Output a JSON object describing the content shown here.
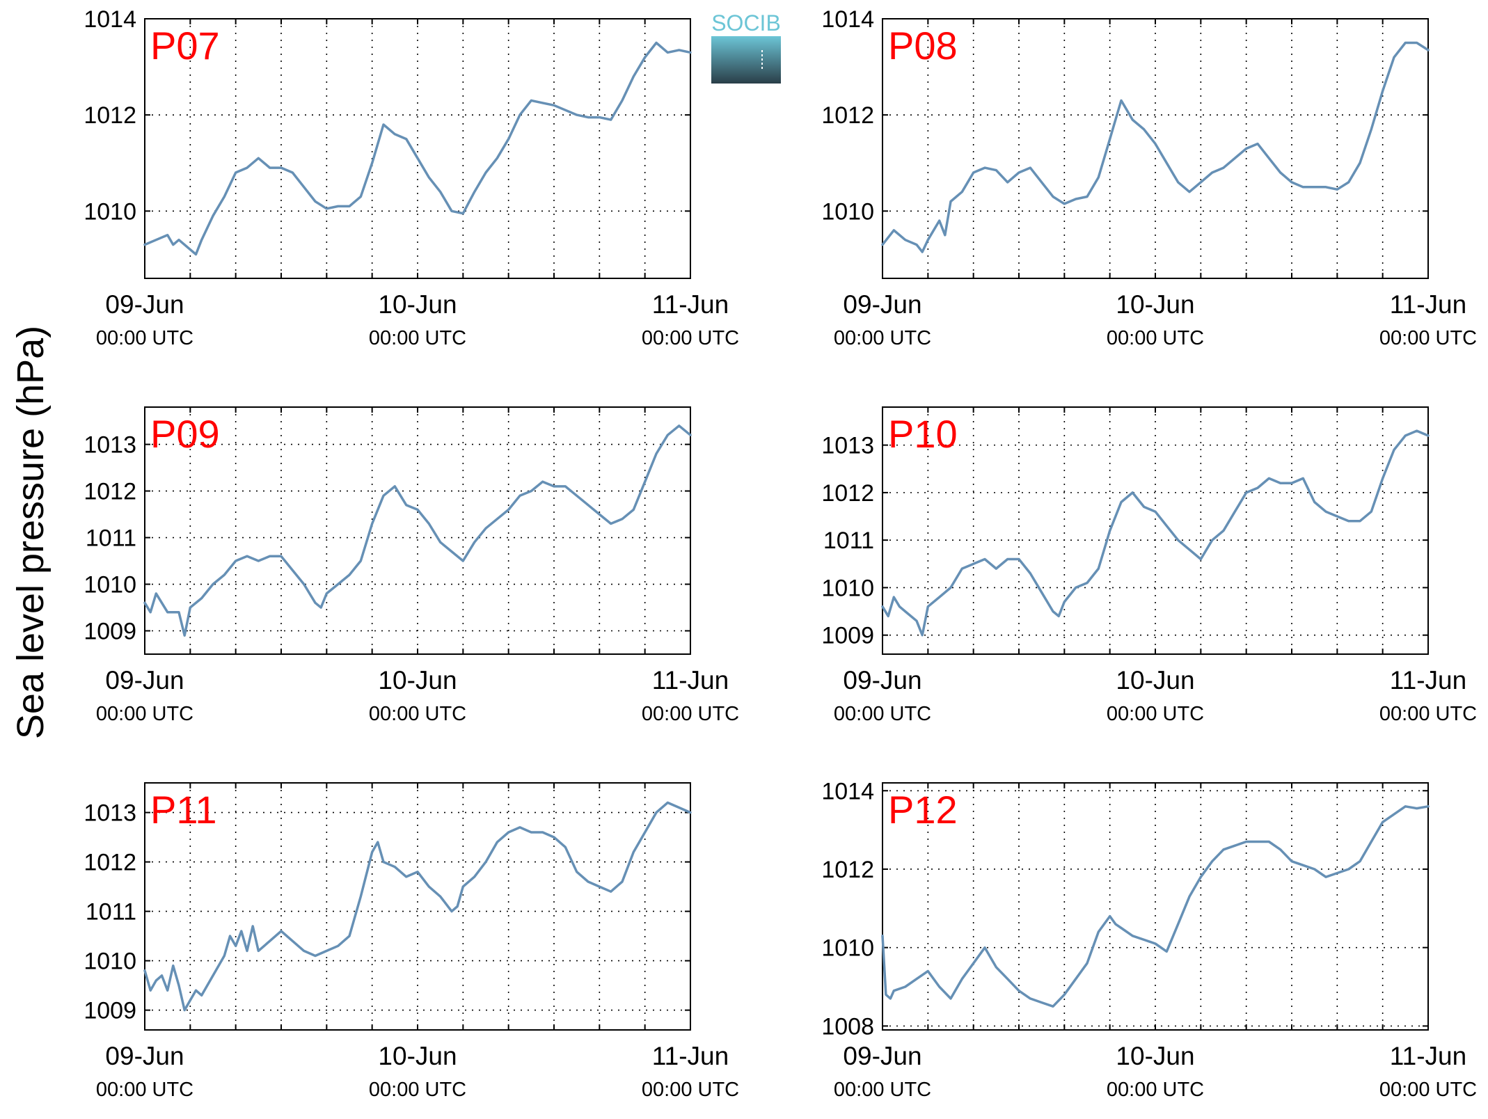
{
  "figure": {
    "ylabel": "Sea level pressure (hPa)",
    "logo_text": "SOCIB",
    "colors": {
      "line": "#6690b5",
      "panel_label": "#ff0000",
      "axis": "#000000",
      "grid": "#000000",
      "logo_top": "#6cc5d6",
      "logo_bottom": "#2a3e48"
    }
  },
  "chart_data": [
    {
      "type": "line",
      "label": "P07",
      "x_unit": "hours since 09-Jun 00:00 UTC",
      "xlim": [
        0,
        48
      ],
      "xticks": [
        0,
        24,
        48
      ],
      "xtick_labels": [
        [
          "09-Jun",
          "00:00 UTC"
        ],
        [
          "10-Jun",
          "00:00 UTC"
        ],
        [
          "11-Jun",
          "00:00 UTC"
        ]
      ],
      "ylim": [
        1008.6,
        1014.0
      ],
      "yticks": [
        1010,
        1012,
        1014
      ],
      "grid": true,
      "x": [
        0,
        1,
        2,
        2.5,
        3,
        4,
        4.5,
        5,
        6,
        7,
        8,
        9,
        10,
        11,
        12,
        13,
        14,
        15,
        16,
        17,
        18,
        19,
        20,
        21,
        22,
        23,
        24,
        25,
        26,
        27,
        28,
        29,
        30,
        31,
        32,
        33,
        34,
        35,
        36,
        37,
        38,
        39,
        40,
        41,
        42,
        43,
        44,
        45,
        46,
        47,
        48
      ],
      "y": [
        1009.3,
        1009.4,
        1009.5,
        1009.3,
        1009.4,
        1009.2,
        1009.1,
        1009.4,
        1009.9,
        1010.3,
        1010.8,
        1010.9,
        1011.1,
        1010.9,
        1010.9,
        1010.8,
        1010.5,
        1010.2,
        1010.05,
        1010.1,
        1010.1,
        1010.3,
        1011.0,
        1011.8,
        1011.6,
        1011.5,
        1011.1,
        1010.7,
        1010.4,
        1010.0,
        1009.95,
        1010.4,
        1010.8,
        1011.1,
        1011.5,
        1012.0,
        1012.3,
        1012.25,
        1012.2,
        1012.1,
        1012.0,
        1011.95,
        1011.95,
        1011.9,
        1012.3,
        1012.8,
        1013.2,
        1013.5,
        1013.3,
        1013.35,
        1013.3
      ]
    },
    {
      "type": "line",
      "label": "P08",
      "x_unit": "hours since 09-Jun 00:00 UTC",
      "xlim": [
        0,
        48
      ],
      "xticks": [
        0,
        24,
        48
      ],
      "xtick_labels": [
        [
          "09-Jun",
          "00:00 UTC"
        ],
        [
          "10-Jun",
          "00:00 UTC"
        ],
        [
          "11-Jun",
          "00:00 UTC"
        ]
      ],
      "ylim": [
        1008.6,
        1014.0
      ],
      "yticks": [
        1010,
        1012,
        1014
      ],
      "grid": true,
      "x": [
        0,
        1,
        2,
        3,
        3.5,
        4,
        5,
        5.5,
        6,
        7,
        8,
        9,
        10,
        11,
        12,
        13,
        14,
        15,
        16,
        17,
        18,
        19,
        20,
        20.5,
        21,
        22,
        23,
        24,
        25,
        26,
        27,
        28,
        29,
        30,
        31,
        32,
        33,
        34,
        35,
        36,
        37,
        38,
        39,
        40,
        41,
        42,
        43,
        44,
        45,
        46,
        47,
        48
      ],
      "y": [
        1009.3,
        1009.6,
        1009.4,
        1009.3,
        1009.15,
        1009.4,
        1009.8,
        1009.5,
        1010.2,
        1010.4,
        1010.8,
        1010.9,
        1010.85,
        1010.6,
        1010.8,
        1010.9,
        1010.6,
        1010.3,
        1010.15,
        1010.25,
        1010.3,
        1010.7,
        1011.5,
        1011.9,
        1012.3,
        1011.9,
        1011.7,
        1011.4,
        1011.0,
        1010.6,
        1010.4,
        1010.6,
        1010.8,
        1010.9,
        1011.1,
        1011.3,
        1011.4,
        1011.1,
        1010.8,
        1010.6,
        1010.5,
        1010.5,
        1010.5,
        1010.45,
        1010.6,
        1011.0,
        1011.7,
        1012.5,
        1013.2,
        1013.5,
        1013.5,
        1013.35
      ]
    },
    {
      "type": "line",
      "label": "P09",
      "x_unit": "hours since 09-Jun 00:00 UTC",
      "xlim": [
        0,
        48
      ],
      "xticks": [
        0,
        24,
        48
      ],
      "xtick_labels": [
        [
          "09-Jun",
          "00:00 UTC"
        ],
        [
          "10-Jun",
          "00:00 UTC"
        ],
        [
          "11-Jun",
          "00:00 UTC"
        ]
      ],
      "ylim": [
        1008.5,
        1013.8
      ],
      "yticks": [
        1009,
        1010,
        1011,
        1012,
        1013
      ],
      "grid": true,
      "x": [
        0,
        0.5,
        1,
        1.5,
        2,
        3,
        3.5,
        4,
        5,
        6,
        7,
        8,
        9,
        10,
        11,
        12,
        13,
        14,
        15,
        15.5,
        16,
        17,
        18,
        19,
        20,
        21,
        22,
        23,
        24,
        25,
        26,
        27,
        28,
        29,
        30,
        31,
        32,
        33,
        34,
        35,
        36,
        37,
        38,
        39,
        40,
        41,
        42,
        43,
        44,
        45,
        46,
        47,
        48
      ],
      "y": [
        1009.6,
        1009.4,
        1009.8,
        1009.6,
        1009.4,
        1009.4,
        1008.9,
        1009.5,
        1009.7,
        1010.0,
        1010.2,
        1010.5,
        1010.6,
        1010.5,
        1010.6,
        1010.6,
        1010.3,
        1010.0,
        1009.6,
        1009.5,
        1009.8,
        1010.0,
        1010.2,
        1010.5,
        1011.3,
        1011.9,
        1012.1,
        1011.7,
        1011.6,
        1011.3,
        1010.9,
        1010.7,
        1010.5,
        1010.9,
        1011.2,
        1011.4,
        1011.6,
        1011.9,
        1012.0,
        1012.2,
        1012.1,
        1012.1,
        1011.9,
        1011.7,
        1011.5,
        1011.3,
        1011.4,
        1011.6,
        1012.2,
        1012.8,
        1013.2,
        1013.4,
        1013.2
      ]
    },
    {
      "type": "line",
      "label": "P10",
      "x_unit": "hours since 09-Jun 00:00 UTC",
      "xlim": [
        0,
        48
      ],
      "xticks": [
        0,
        24,
        48
      ],
      "xtick_labels": [
        [
          "09-Jun",
          "00:00 UTC"
        ],
        [
          "10-Jun",
          "00:00 UTC"
        ],
        [
          "11-Jun",
          "00:00 UTC"
        ]
      ],
      "ylim": [
        1008.6,
        1013.8
      ],
      "yticks": [
        1009,
        1010,
        1011,
        1012,
        1013
      ],
      "grid": true,
      "x": [
        0,
        0.5,
        1,
        1.5,
        2,
        3,
        3.5,
        4,
        5,
        6,
        7,
        8,
        9,
        10,
        11,
        12,
        13,
        14,
        15,
        15.5,
        16,
        17,
        18,
        19,
        20,
        21,
        22,
        23,
        24,
        25,
        26,
        27,
        28,
        29,
        30,
        31,
        32,
        33,
        34,
        35,
        36,
        37,
        38,
        39,
        40,
        41,
        42,
        43,
        44,
        45,
        46,
        47,
        48
      ],
      "y": [
        1009.6,
        1009.4,
        1009.8,
        1009.6,
        1009.5,
        1009.3,
        1009.0,
        1009.6,
        1009.8,
        1010.0,
        1010.4,
        1010.5,
        1010.6,
        1010.4,
        1010.6,
        1010.6,
        1010.3,
        1009.9,
        1009.5,
        1009.4,
        1009.7,
        1010.0,
        1010.1,
        1010.4,
        1011.2,
        1011.8,
        1012.0,
        1011.7,
        1011.6,
        1011.3,
        1011.0,
        1010.8,
        1010.6,
        1011.0,
        1011.2,
        1011.6,
        1012.0,
        1012.1,
        1012.3,
        1012.2,
        1012.2,
        1012.3,
        1011.8,
        1011.6,
        1011.5,
        1011.4,
        1011.4,
        1011.6,
        1012.3,
        1012.9,
        1013.2,
        1013.3,
        1013.2
      ]
    },
    {
      "type": "line",
      "label": "P11",
      "x_unit": "hours since 09-Jun 00:00 UTC",
      "xlim": [
        0,
        48
      ],
      "xticks": [
        0,
        24,
        48
      ],
      "xtick_labels": [
        [
          "09-Jun",
          "00:00 UTC"
        ],
        [
          "10-Jun",
          "00:00 UTC"
        ],
        [
          "11-Jun",
          "00:00 UTC"
        ]
      ],
      "ylim": [
        1008.6,
        1013.6
      ],
      "yticks": [
        1009,
        1010,
        1011,
        1012,
        1013
      ],
      "grid": true,
      "x": [
        0,
        0.5,
        1,
        1.5,
        2,
        2.5,
        3,
        3.5,
        4,
        4.5,
        5,
        6,
        7,
        7.5,
        8,
        8.5,
        9,
        9.5,
        10,
        11,
        12,
        13,
        14,
        15,
        16,
        17,
        18,
        19,
        20,
        20.5,
        21,
        22,
        23,
        24,
        25,
        26,
        27,
        27.5,
        28,
        29,
        30,
        31,
        32,
        33,
        34,
        35,
        36,
        37,
        38,
        39,
        40,
        41,
        42,
        43,
        44,
        45,
        46,
        47,
        48
      ],
      "y": [
        1009.8,
        1009.4,
        1009.6,
        1009.7,
        1009.4,
        1009.9,
        1009.5,
        1009.0,
        1009.2,
        1009.4,
        1009.3,
        1009.7,
        1010.1,
        1010.5,
        1010.3,
        1010.6,
        1010.2,
        1010.7,
        1010.2,
        1010.4,
        1010.6,
        1010.4,
        1010.2,
        1010.1,
        1010.2,
        1010.3,
        1010.5,
        1011.3,
        1012.2,
        1012.4,
        1012.0,
        1011.9,
        1011.7,
        1011.8,
        1011.5,
        1011.3,
        1011.0,
        1011.1,
        1011.5,
        1011.7,
        1012.0,
        1012.4,
        1012.6,
        1012.7,
        1012.6,
        1012.6,
        1012.5,
        1012.3,
        1011.8,
        1011.6,
        1011.5,
        1011.4,
        1011.6,
        1012.2,
        1012.6,
        1013.0,
        1013.2,
        1013.1,
        1013.0
      ]
    },
    {
      "type": "line",
      "label": "P12",
      "x_unit": "hours since 09-Jun 00:00 UTC",
      "xlim": [
        0,
        48
      ],
      "xticks": [
        0,
        24,
        48
      ],
      "xtick_labels": [
        [
          "09-Jun",
          "00:00 UTC"
        ],
        [
          "10-Jun",
          "00:00 UTC"
        ],
        [
          "11-Jun",
          "00:00 UTC"
        ]
      ],
      "ylim": [
        1007.9,
        1014.2
      ],
      "yticks": [
        1008,
        1010,
        1012,
        1014
      ],
      "grid": true,
      "x": [
        0,
        0.3,
        0.7,
        1,
        2,
        3,
        4,
        5,
        6,
        7,
        8,
        9,
        10,
        11,
        12,
        13,
        14,
        15,
        16,
        17,
        18,
        19,
        20,
        20.5,
        21,
        22,
        23,
        24,
        25,
        26,
        27,
        28,
        29,
        30,
        31,
        32,
        33,
        34,
        35,
        36,
        37,
        38,
        39,
        40,
        41,
        42,
        43,
        44,
        45,
        46,
        47,
        48
      ],
      "y": [
        1010.3,
        1008.8,
        1008.7,
        1008.9,
        1009.0,
        1009.2,
        1009.4,
        1009.0,
        1008.7,
        1009.2,
        1009.6,
        1010.0,
        1009.5,
        1009.2,
        1008.9,
        1008.7,
        1008.6,
        1008.5,
        1008.8,
        1009.2,
        1009.6,
        1010.4,
        1010.8,
        1010.6,
        1010.5,
        1010.3,
        1010.2,
        1010.1,
        1009.9,
        1010.6,
        1011.3,
        1011.8,
        1012.2,
        1012.5,
        1012.6,
        1012.7,
        1012.7,
        1012.7,
        1012.5,
        1012.2,
        1012.1,
        1012.0,
        1011.8,
        1011.9,
        1012.0,
        1012.2,
        1012.7,
        1013.2,
        1013.4,
        1013.6,
        1013.55,
        1013.6
      ]
    }
  ]
}
